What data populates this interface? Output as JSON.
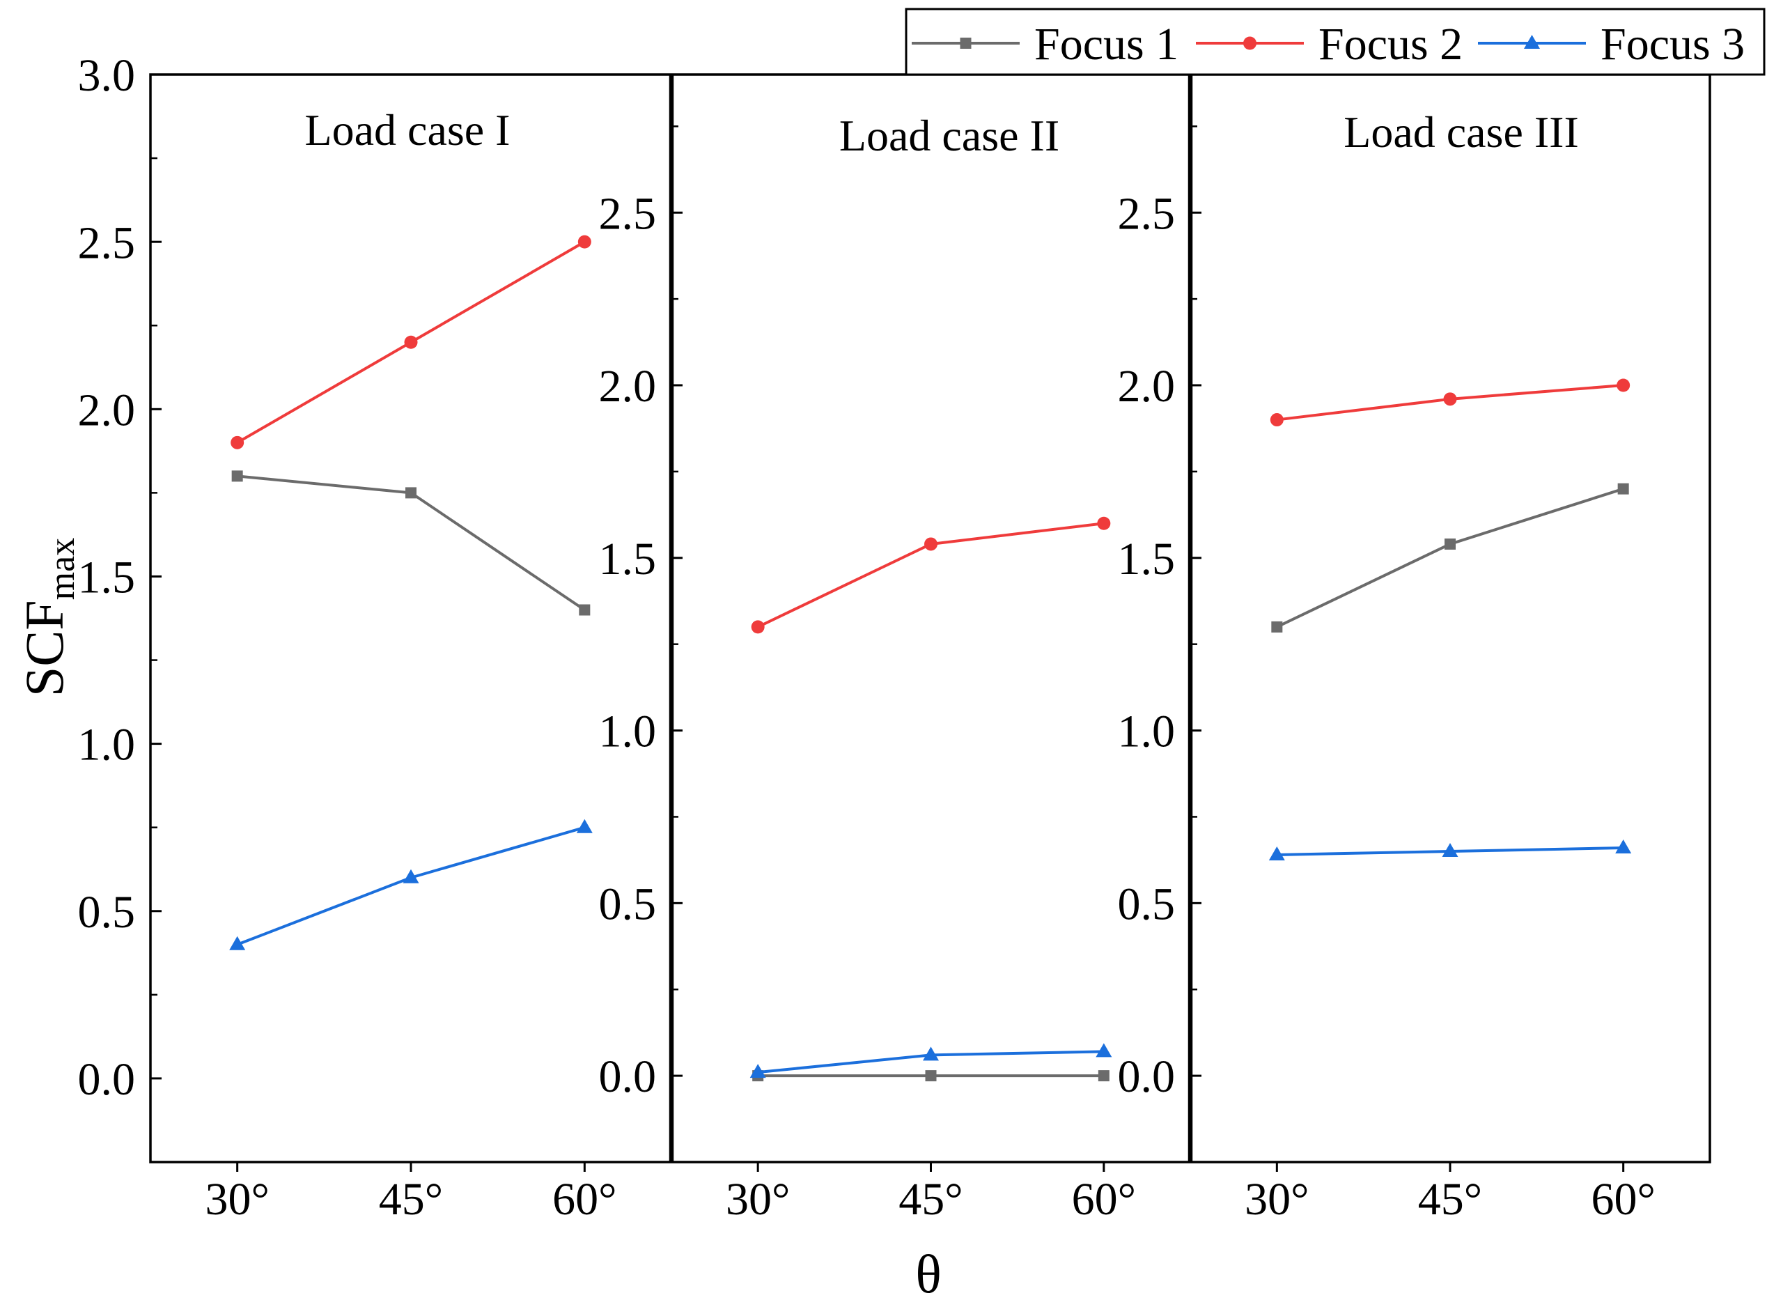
{
  "chart_data": {
    "type": "line",
    "grid": false,
    "xlabel": "θ",
    "ylabel": {
      "text": "SCF",
      "subscript": "max"
    },
    "categories": [
      "30°",
      "45°",
      "60°"
    ],
    "legend": {
      "position": "top-right"
    },
    "series": [
      {
        "name": "Focus 1",
        "color": "#6b6b6b",
        "marker": "square"
      },
      {
        "name": "Focus 2",
        "color": "#ef3b3b",
        "marker": "circle"
      },
      {
        "name": "Focus 3",
        "color": "#1b6fdc",
        "marker": "triangle"
      }
    ],
    "panels": [
      {
        "title": "Load case I",
        "ylim": [
          -0.25,
          3.0
        ],
        "yticks": [
          0,
          0.5,
          1.0,
          1.5,
          2.0,
          2.5,
          3.0
        ],
        "ytick_labels": [
          "0.0",
          "0.5",
          "1.0",
          "1.5",
          "2.0",
          "2.5",
          "3.0"
        ],
        "series_values": [
          [
            1.8,
            1.75,
            1.4
          ],
          [
            1.9,
            2.2,
            2.5
          ],
          [
            0.4,
            0.6,
            0.75
          ]
        ]
      },
      {
        "title": "Load case II",
        "ylim": [
          -0.25,
          2.9
        ],
        "yticks": [
          0,
          0.5,
          1.0,
          1.5,
          2.0,
          2.5
        ],
        "ytick_labels": [
          "0.0",
          "0.5",
          "1.0",
          "1.5",
          "2.0",
          "2.5"
        ],
        "series_values": [
          [
            0.0,
            0.0,
            0.0
          ],
          [
            1.3,
            1.54,
            1.6
          ],
          [
            0.01,
            0.06,
            0.07
          ]
        ]
      },
      {
        "title": "Load case III",
        "ylim": [
          -0.25,
          2.9
        ],
        "yticks": [
          0,
          0.5,
          1.0,
          1.5,
          2.0,
          2.5
        ],
        "ytick_labels": [
          "0.0",
          "0.5",
          "1.0",
          "1.5",
          "2.0",
          "2.5"
        ],
        "series_values": [
          [
            1.3,
            1.54,
            1.7
          ],
          [
            1.9,
            1.96,
            2.0
          ],
          [
            0.64,
            0.65,
            0.66
          ]
        ]
      }
    ]
  }
}
